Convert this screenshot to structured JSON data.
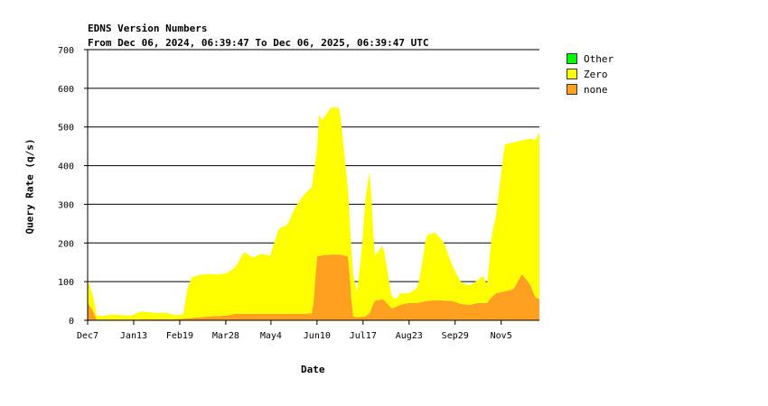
{
  "chart_data": {
    "type": "area",
    "stacked": true,
    "title": "EDNS Version Numbers",
    "subtitle": "From Dec 06, 2024, 06:39:47 To Dec 06, 2025, 06:39:47 UTC",
    "xlabel": "Date",
    "ylabel": "Query Rate (q/s)",
    "ylim": [
      0,
      700
    ],
    "yticks": [
      0,
      100,
      200,
      300,
      400,
      500,
      600,
      700
    ],
    "grid": true,
    "legend_position": "right",
    "xticks": [
      {
        "label": "Dec7",
        "week": 0
      },
      {
        "label": "Jan13",
        "week": 5.3
      },
      {
        "label": "Feb19",
        "week": 10.6
      },
      {
        "label": "Mar28",
        "week": 15.9
      },
      {
        "label": "May4",
        "week": 21.1
      },
      {
        "label": "Jun10",
        "week": 26.4
      },
      {
        "label": "Jul17",
        "week": 31.7
      },
      {
        "label": "Aug23",
        "week": 37
      },
      {
        "label": "Sep29",
        "week": 42.3
      },
      {
        "label": "Nov5",
        "week": 47.6
      }
    ],
    "x_range_weeks": [
      0,
      52
    ],
    "series": [
      {
        "name": "Other",
        "color": "#00ff00",
        "points": [
          [
            0,
            0
          ],
          [
            52,
            0
          ]
        ]
      },
      {
        "name": "Zero",
        "color": "#ffff00",
        "points": [
          [
            0,
            60
          ],
          [
            0.8,
            30
          ],
          [
            1,
            10
          ],
          [
            2,
            10
          ],
          [
            3,
            13
          ],
          [
            4,
            11
          ],
          [
            5,
            10
          ],
          [
            6,
            20
          ],
          [
            7,
            19
          ],
          [
            8,
            16
          ],
          [
            9,
            17
          ],
          [
            10,
            11
          ],
          [
            11,
            10
          ],
          [
            11.5,
            80
          ],
          [
            12,
            105
          ],
          [
            13,
            110
          ],
          [
            14,
            110
          ],
          [
            15,
            107
          ],
          [
            16,
            110
          ],
          [
            17,
            120
          ],
          [
            18,
            160
          ],
          [
            19,
            145
          ],
          [
            20,
            155
          ],
          [
            21,
            150
          ],
          [
            22,
            220
          ],
          [
            23,
            230
          ],
          [
            24,
            280
          ],
          [
            25,
            310
          ],
          [
            26,
            330
          ],
          [
            26.4,
            270
          ],
          [
            26.6,
            365
          ],
          [
            27,
            350
          ],
          [
            28,
            380
          ],
          [
            29,
            380
          ],
          [
            30,
            165
          ],
          [
            31,
            65
          ],
          [
            31.5,
            160
          ],
          [
            32,
            310
          ],
          [
            32.5,
            370
          ],
          [
            33,
            115
          ],
          [
            34,
            140
          ],
          [
            35,
            30
          ],
          [
            35.5,
            20
          ],
          [
            36,
            30
          ],
          [
            37,
            25
          ],
          [
            38,
            40
          ],
          [
            38.5,
            100
          ],
          [
            39,
            170
          ],
          [
            40,
            175
          ],
          [
            41,
            150
          ],
          [
            42,
            90
          ],
          [
            43,
            55
          ],
          [
            44,
            50
          ],
          [
            45,
            60
          ],
          [
            45.5,
            70
          ],
          [
            46,
            45
          ],
          [
            46.5,
            160
          ],
          [
            47,
            200
          ],
          [
            48,
            380
          ],
          [
            49,
            380
          ],
          [
            50,
            345
          ],
          [
            51,
            380
          ],
          [
            52,
            430
          ]
        ]
      },
      {
        "name": "none",
        "color": "#ffa020",
        "points": [
          [
            0,
            45
          ],
          [
            0.5,
            30
          ],
          [
            0.8,
            15
          ],
          [
            1,
            2
          ],
          [
            5,
            2
          ],
          [
            10,
            3
          ],
          [
            11.5,
            5
          ],
          [
            12,
            6
          ],
          [
            14,
            10
          ],
          [
            16,
            12
          ],
          [
            17,
            17
          ],
          [
            20,
            17
          ],
          [
            22,
            17
          ],
          [
            25,
            17
          ],
          [
            25.9,
            18
          ],
          [
            26.4,
            165
          ],
          [
            27,
            168
          ],
          [
            28,
            170
          ],
          [
            29,
            170
          ],
          [
            30,
            165
          ],
          [
            30.5,
            10
          ],
          [
            31,
            8
          ],
          [
            32,
            10
          ],
          [
            32.5,
            20
          ],
          [
            33,
            50
          ],
          [
            34,
            55
          ],
          [
            35,
            30
          ],
          [
            36,
            40
          ],
          [
            37,
            45
          ],
          [
            38,
            45
          ],
          [
            39,
            50
          ],
          [
            40,
            52
          ],
          [
            42,
            50
          ],
          [
            43,
            42
          ],
          [
            44,
            40
          ],
          [
            45,
            45
          ],
          [
            46,
            45
          ],
          [
            46.5,
            60
          ],
          [
            47,
            70
          ],
          [
            48,
            75
          ],
          [
            49,
            80
          ],
          [
            50,
            120
          ],
          [
            51,
            90
          ],
          [
            51.5,
            60
          ],
          [
            52,
            55
          ]
        ]
      }
    ]
  }
}
